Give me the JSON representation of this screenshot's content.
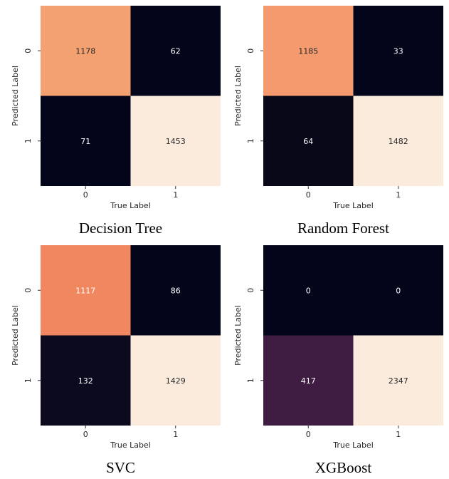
{
  "chart_data": [
    {
      "type": "heatmap",
      "caption": "Decision Tree",
      "xlabel": "True Label",
      "ylabel": "Predicted Label",
      "x_categories": [
        "0",
        "1"
      ],
      "y_categories": [
        "0",
        "1"
      ],
      "values": [
        [
          1178,
          62
        ],
        [
          71,
          1453
        ]
      ],
      "cell_colors": [
        [
          "#f4a172",
          "#03051a"
        ],
        [
          "#03051a",
          "#faebdd"
        ]
      ],
      "cell_text_colors": [
        [
          "#262626",
          "#ffffff"
        ],
        [
          "#ffffff",
          "#262626"
        ]
      ]
    },
    {
      "type": "heatmap",
      "caption": "Random Forest",
      "xlabel": "True Label",
      "ylabel": "Predicted Label",
      "x_categories": [
        "0",
        "1"
      ],
      "y_categories": [
        "0",
        "1"
      ],
      "values": [
        [
          1185,
          33
        ],
        [
          64,
          1482
        ]
      ],
      "cell_colors": [
        [
          "#f49a6e",
          "#03051a"
        ],
        [
          "#080818",
          "#faebdd"
        ]
      ],
      "cell_text_colors": [
        [
          "#262626",
          "#ffffff"
        ],
        [
          "#ffffff",
          "#262626"
        ]
      ]
    },
    {
      "type": "heatmap",
      "caption": "SVC",
      "xlabel": "True Label",
      "ylabel": "Predicted Label",
      "x_categories": [
        "0",
        "1"
      ],
      "y_categories": [
        "0",
        "1"
      ],
      "values": [
        [
          1117,
          86
        ],
        [
          132,
          1429
        ]
      ],
      "cell_colors": [
        [
          "#f1875e",
          "#03051a"
        ],
        [
          "#0c0a1e",
          "#faebdd"
        ]
      ],
      "cell_text_colors": [
        [
          "#ffffff",
          "#ffffff"
        ],
        [
          "#ffffff",
          "#262626"
        ]
      ]
    },
    {
      "type": "heatmap",
      "caption": "XGBoost",
      "xlabel": "True Label",
      "ylabel": "Predicted Label",
      "x_categories": [
        "0",
        "1"
      ],
      "y_categories": [
        "0",
        "1"
      ],
      "values": [
        [
          0,
          0
        ],
        [
          417,
          2347
        ]
      ],
      "cell_colors": [
        [
          "#03051a",
          "#03051a"
        ],
        [
          "#3f1c42",
          "#faebdd"
        ]
      ],
      "cell_text_colors": [
        [
          "#ffffff",
          "#ffffff"
        ],
        [
          "#ffffff",
          "#262626"
        ]
      ]
    }
  ]
}
